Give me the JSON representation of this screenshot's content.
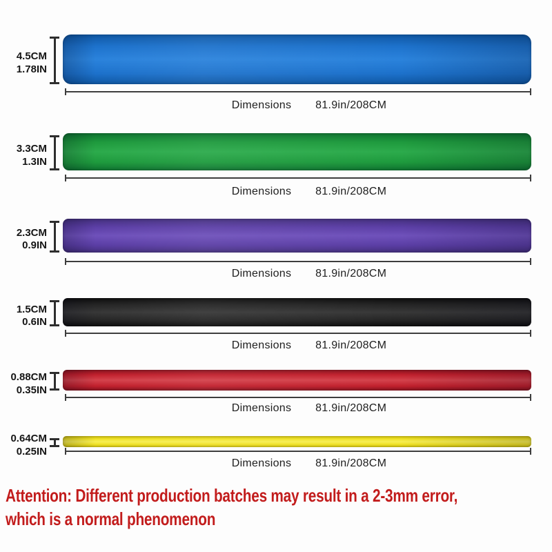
{
  "bands": [
    {
      "name": "blue",
      "color": "#1d72cc",
      "color_edge": "#0f57a3",
      "color_highlight": "#2b83dc",
      "width_cm": "4.5CM",
      "width_in": "1.78IN",
      "dim_label": "Dimensions",
      "dim_value": "81.9in/208CM"
    },
    {
      "name": "green",
      "color": "#1e9a3d",
      "color_edge": "#0f7330",
      "color_highlight": "#2cab4c",
      "width_cm": "3.3CM",
      "width_in": "1.3IN",
      "dim_label": "Dimensions",
      "dim_value": "81.9in/208CM"
    },
    {
      "name": "purple",
      "color": "#5b3ea5",
      "color_edge": "#44307e",
      "color_highlight": "#6f51bb",
      "width_cm": "2.3CM",
      "width_in": "0.9IN",
      "dim_label": "Dimensions",
      "dim_value": "81.9in/208CM"
    },
    {
      "name": "black",
      "color": "#252525",
      "color_edge": "#0e0e0e",
      "color_highlight": "#383838",
      "width_cm": "1.5CM",
      "width_in": "0.6IN",
      "dim_label": "Dimensions",
      "dim_value": "81.9in/208CM"
    },
    {
      "name": "red",
      "color": "#c1202d",
      "color_edge": "#8c1420",
      "color_highlight": "#d4424c",
      "width_cm": "0.88CM",
      "width_in": "0.35IN",
      "dim_label": "Dimensions",
      "dim_value": "81.9in/208CM"
    },
    {
      "name": "yellow",
      "color": "#f0e223",
      "color_edge": "#cfc00f",
      "color_highlight": "#f7ee55",
      "width_cm": "0.64CM",
      "width_in": "0.25IN",
      "dim_label": "Dimensions",
      "dim_value": "81.9in/208CM"
    }
  ],
  "attention": {
    "color": "#c21c1c",
    "line1": "Attention: Different production batches may result in a 2-3mm error,",
    "line2": "which is a normal phenomenon"
  }
}
